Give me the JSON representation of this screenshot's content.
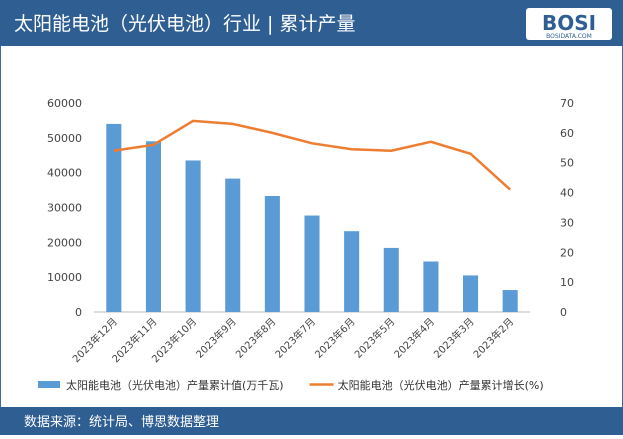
{
  "header": {
    "title": "太阳能电池（光伏电池）行业 | 累计产量",
    "logo": "BOSI",
    "logo_sub": "BOSIDATA.COM"
  },
  "chart_data": {
    "type": "bar-line",
    "categories": [
      "2023年12月",
      "2023年11月",
      "2023年10月",
      "2023年9月",
      "2023年8月",
      "2023年7月",
      "2023年6月",
      "2023年5月",
      "2023年4月",
      "2023年3月",
      "2023年2月"
    ],
    "series": [
      {
        "name": "太阳能电池（光伏电池）产量累计值(万千瓦)",
        "color": "#5b9bd5",
        "type": "bar",
        "values": [
          54000,
          49000,
          43500,
          38300,
          33300,
          27700,
          23200,
          18400,
          14500,
          10500,
          6300
        ]
      },
      {
        "name": "太阳能电池（光伏电池）产量累计增长(%)",
        "color": "#ed7d31",
        "type": "line",
        "axis": "y2",
        "values": [
          54,
          56,
          64,
          63,
          60,
          56.5,
          54.5,
          54,
          57,
          53,
          41
        ]
      }
    ],
    "ylim": [
      0,
      60000
    ],
    "yticks": [
      0,
      10000,
      20000,
      30000,
      40000,
      50000,
      60000
    ],
    "y2lim": [
      0,
      70
    ],
    "y2ticks": [
      0,
      10,
      20,
      30,
      40,
      50,
      60,
      70
    ]
  },
  "footer": {
    "source": "数据来源：统计局、博思数据整理"
  }
}
